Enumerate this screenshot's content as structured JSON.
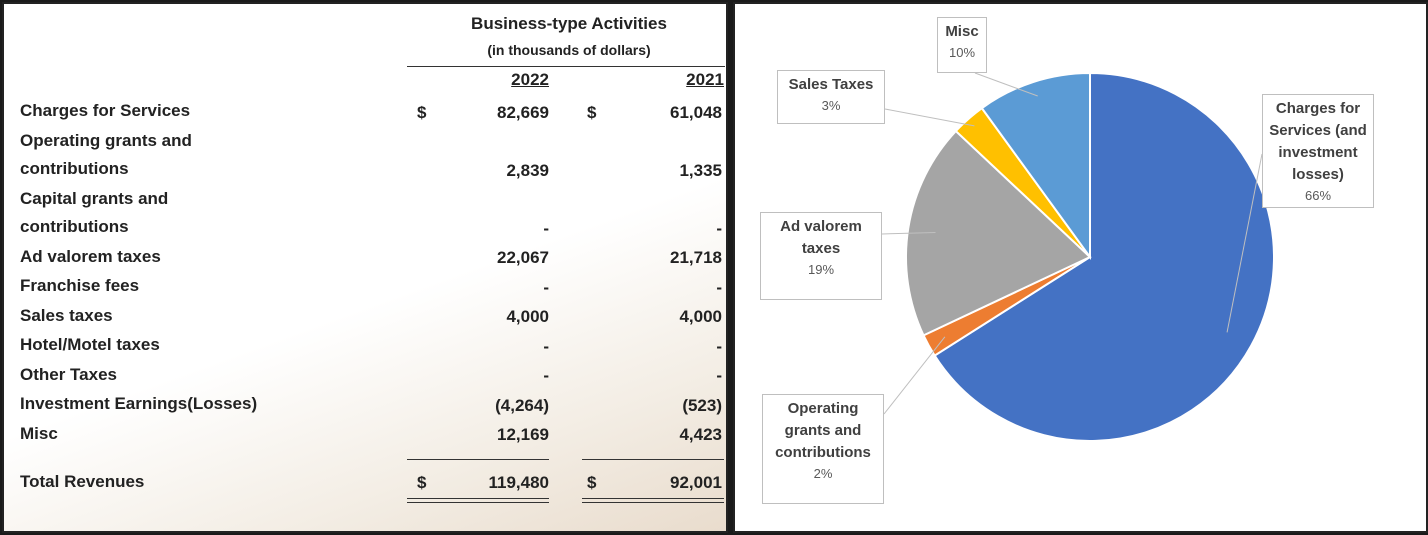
{
  "table": {
    "title": "Business-type Activities",
    "subtitle": "(in thousands of dollars)",
    "columns": [
      "2022",
      "2021"
    ],
    "rows": [
      [
        "Charges for Services",
        "$",
        "82,669",
        "$",
        "61,048"
      ],
      [
        "Operating grants and contributions",
        null,
        "2,839",
        null,
        "1,335"
      ],
      [
        "Capital grants and contributions",
        null,
        "-",
        null,
        "-"
      ],
      [
        "Ad valorem taxes",
        null,
        "22,067",
        null,
        "21,718"
      ],
      [
        "Franchise fees",
        null,
        "-",
        null,
        "-"
      ],
      [
        "Sales taxes",
        null,
        "4,000",
        null,
        "4,000"
      ],
      [
        "Hotel/Motel taxes",
        null,
        "-",
        null,
        "-"
      ],
      [
        "Other Taxes",
        null,
        "-",
        null,
        "-"
      ],
      [
        "Investment Earnings(Losses)",
        null,
        "(4,264)",
        null,
        "(523)"
      ],
      [
        "Misc",
        null,
        "12,169",
        null,
        "4,423"
      ]
    ],
    "total": [
      "Total Revenues",
      "$",
      "119,480",
      "$",
      "92,001"
    ]
  },
  "chart_data": {
    "type": "pie",
    "categories": [
      "Charges for Services (and investment losses)",
      "Operating grants and contributions",
      "Ad valorem taxes",
      "Sales Taxes",
      "Misc"
    ],
    "values": [
      66,
      2,
      19,
      3,
      10
    ],
    "value_labels": [
      "66%",
      "2%",
      "19%",
      "3%",
      "10%"
    ],
    "colors": [
      "#4472c4",
      "#ed7d31",
      "#a5a5a5",
      "#ffc000",
      "#5b9bd5"
    ]
  }
}
